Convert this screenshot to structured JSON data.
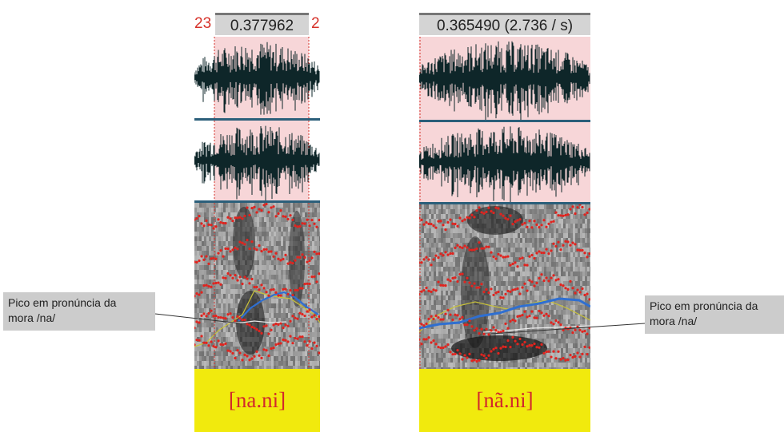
{
  "left_panel": {
    "edge_left": "23",
    "selection_duration": "0.377962",
    "edge_right": "2",
    "transcription": "[na.ni]"
  },
  "right_panel": {
    "selection_duration": "0.365490 (2.736 / s)",
    "transcription": "[nã.ni]"
  },
  "annotations": {
    "left_callout": [
      "Pico em pronúncia da",
      "mora /na/"
    ],
    "right_callout": [
      "Pico em pronúncia da",
      "mora /na/"
    ]
  },
  "colors": {
    "selection_bg": "#f7d6d8",
    "waveform": "#0e2629",
    "separator": "#2b5f7a",
    "formant_dots": "#e0241f",
    "pitch_curve": "#2f6fd1",
    "intensity_curve": "#c9c23a",
    "tier_bg": "#f1ea0d",
    "tier_text": "#d2292b"
  },
  "icons": []
}
